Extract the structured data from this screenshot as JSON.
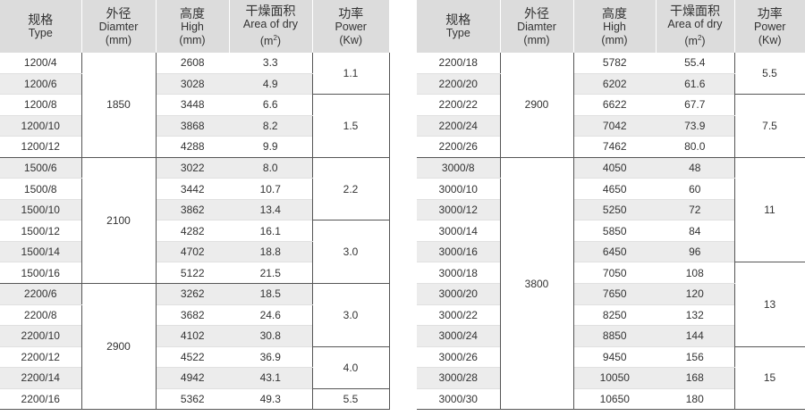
{
  "header": {
    "type_zh": "规格",
    "type_en": "Type",
    "dia_zh": "外径",
    "dia_en1": "Diamter",
    "dia_en2": "(mm)",
    "high_zh": "高度",
    "high_en1": "High",
    "high_en2": "(mm)",
    "area_zh": "干燥面积",
    "area_en1": "Area of dry",
    "area_unit_pre": "(m",
    "area_unit_sup": "2",
    "area_unit_post": ")",
    "power_zh": "功率",
    "power_en1": "Power",
    "power_en2": "(Kw)"
  },
  "left": {
    "rows": [
      {
        "type": "1200/4",
        "high": "2608",
        "area": "3.3"
      },
      {
        "type": "1200/6",
        "high": "3028",
        "area": "4.9"
      },
      {
        "type": "1200/8",
        "high": "3448",
        "area": "6.6"
      },
      {
        "type": "1200/10",
        "high": "3868",
        "area": "8.2"
      },
      {
        "type": "1200/12",
        "high": "4288",
        "area": "9.9"
      },
      {
        "type": "1500/6",
        "high": "3022",
        "area": "8.0"
      },
      {
        "type": "1500/8",
        "high": "3442",
        "area": "10.7"
      },
      {
        "type": "1500/10",
        "high": "3862",
        "area": "13.4"
      },
      {
        "type": "1500/12",
        "high": "4282",
        "area": "16.1"
      },
      {
        "type": "1500/14",
        "high": "4702",
        "area": "18.8"
      },
      {
        "type": "1500/16",
        "high": "5122",
        "area": "21.5"
      },
      {
        "type": "2200/6",
        "high": "3262",
        "area": "18.5"
      },
      {
        "type": "2200/8",
        "high": "3682",
        "area": "24.6"
      },
      {
        "type": "2200/10",
        "high": "4102",
        "area": "30.8"
      },
      {
        "type": "2200/12",
        "high": "4522",
        "area": "36.9"
      },
      {
        "type": "2200/14",
        "high": "4942",
        "area": "43.1"
      },
      {
        "type": "2200/16",
        "high": "5362",
        "area": "49.3"
      }
    ],
    "diameters": [
      "1850",
      "2100",
      "2900"
    ],
    "powers": [
      "1.1",
      "1.5",
      "2.2",
      "3.0",
      "3.0",
      "4.0",
      "5.5"
    ]
  },
  "right": {
    "rows": [
      {
        "type": "2200/18",
        "high": "5782",
        "area": "55.4"
      },
      {
        "type": "2200/20",
        "high": "6202",
        "area": "61.6"
      },
      {
        "type": "2200/22",
        "high": "6622",
        "area": "67.7"
      },
      {
        "type": "2200/24",
        "high": "7042",
        "area": "73.9"
      },
      {
        "type": "2200/26",
        "high": "7462",
        "area": "80.0"
      },
      {
        "type": "3000/8",
        "high": "4050",
        "area": "48"
      },
      {
        "type": "3000/10",
        "high": "4650",
        "area": "60"
      },
      {
        "type": "3000/12",
        "high": "5250",
        "area": "72"
      },
      {
        "type": "3000/14",
        "high": "5850",
        "area": "84"
      },
      {
        "type": "3000/16",
        "high": "6450",
        "area": "96"
      },
      {
        "type": "3000/18",
        "high": "7050",
        "area": "108"
      },
      {
        "type": "3000/20",
        "high": "7650",
        "area": "120"
      },
      {
        "type": "3000/22",
        "high": "8250",
        "area": "132"
      },
      {
        "type": "3000/24",
        "high": "8850",
        "area": "144"
      },
      {
        "type": "3000/26",
        "high": "9450",
        "area": "156"
      },
      {
        "type": "3000/28",
        "high": "10050",
        "area": "168"
      },
      {
        "type": "3000/30",
        "high": "10650",
        "area": "180"
      }
    ],
    "diameters": [
      "2900",
      "3800"
    ],
    "powers": [
      "5.5",
      "7.5",
      "11",
      "13",
      "15"
    ]
  }
}
